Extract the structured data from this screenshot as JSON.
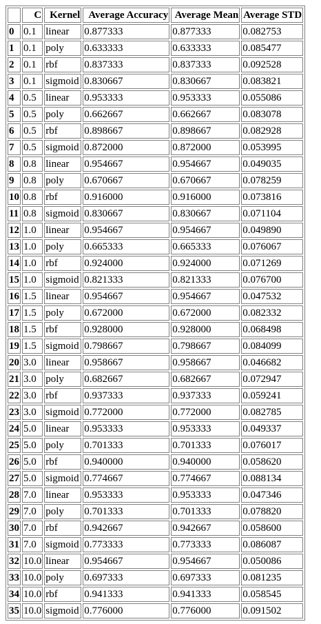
{
  "table": {
    "columns": [
      "",
      "C",
      "Kernel",
      "Average Accuracy",
      "Average Mean",
      "Average STD"
    ],
    "rows": [
      [
        "0",
        "0.1",
        "linear",
        "0.877333",
        "0.877333",
        "0.082753"
      ],
      [
        "1",
        "0.1",
        "poly",
        "0.633333",
        "0.633333",
        "0.085477"
      ],
      [
        "2",
        "0.1",
        "rbf",
        "0.837333",
        "0.837333",
        "0.092528"
      ],
      [
        "3",
        "0.1",
        "sigmoid",
        "0.830667",
        "0.830667",
        "0.083821"
      ],
      [
        "4",
        "0.5",
        "linear",
        "0.953333",
        "0.953333",
        "0.055086"
      ],
      [
        "5",
        "0.5",
        "poly",
        "0.662667",
        "0.662667",
        "0.083078"
      ],
      [
        "6",
        "0.5",
        "rbf",
        "0.898667",
        "0.898667",
        "0.082928"
      ],
      [
        "7",
        "0.5",
        "sigmoid",
        "0.872000",
        "0.872000",
        "0.053995"
      ],
      [
        "8",
        "0.8",
        "linear",
        "0.954667",
        "0.954667",
        "0.049035"
      ],
      [
        "9",
        "0.8",
        "poly",
        "0.670667",
        "0.670667",
        "0.078259"
      ],
      [
        "10",
        "0.8",
        "rbf",
        "0.916000",
        "0.916000",
        "0.073816"
      ],
      [
        "11",
        "0.8",
        "sigmoid",
        "0.830667",
        "0.830667",
        "0.071104"
      ],
      [
        "12",
        "1.0",
        "linear",
        "0.954667",
        "0.954667",
        "0.049890"
      ],
      [
        "13",
        "1.0",
        "poly",
        "0.665333",
        "0.665333",
        "0.076067"
      ],
      [
        "14",
        "1.0",
        "rbf",
        "0.924000",
        "0.924000",
        "0.071269"
      ],
      [
        "15",
        "1.0",
        "sigmoid",
        "0.821333",
        "0.821333",
        "0.076700"
      ],
      [
        "16",
        "1.5",
        "linear",
        "0.954667",
        "0.954667",
        "0.047532"
      ],
      [
        "17",
        "1.5",
        "poly",
        "0.672000",
        "0.672000",
        "0.082332"
      ],
      [
        "18",
        "1.5",
        "rbf",
        "0.928000",
        "0.928000",
        "0.068498"
      ],
      [
        "19",
        "1.5",
        "sigmoid",
        "0.798667",
        "0.798667",
        "0.084099"
      ],
      [
        "20",
        "3.0",
        "linear",
        "0.958667",
        "0.958667",
        "0.046682"
      ],
      [
        "21",
        "3.0",
        "poly",
        "0.682667",
        "0.682667",
        "0.072947"
      ],
      [
        "22",
        "3.0",
        "rbf",
        "0.937333",
        "0.937333",
        "0.059241"
      ],
      [
        "23",
        "3.0",
        "sigmoid",
        "0.772000",
        "0.772000",
        "0.082785"
      ],
      [
        "24",
        "5.0",
        "linear",
        "0.953333",
        "0.953333",
        "0.049337"
      ],
      [
        "25",
        "5.0",
        "poly",
        "0.701333",
        "0.701333",
        "0.076017"
      ],
      [
        "26",
        "5.0",
        "rbf",
        "0.940000",
        "0.940000",
        "0.058620"
      ],
      [
        "27",
        "5.0",
        "sigmoid",
        "0.774667",
        "0.774667",
        "0.088134"
      ],
      [
        "28",
        "7.0",
        "linear",
        "0.953333",
        "0.953333",
        "0.047346"
      ],
      [
        "29",
        "7.0",
        "poly",
        "0.701333",
        "0.701333",
        "0.078820"
      ],
      [
        "30",
        "7.0",
        "rbf",
        "0.942667",
        "0.942667",
        "0.058600"
      ],
      [
        "31",
        "7.0",
        "sigmoid",
        "0.773333",
        "0.773333",
        "0.086087"
      ],
      [
        "32",
        "10.0",
        "linear",
        "0.954667",
        "0.954667",
        "0.050086"
      ],
      [
        "33",
        "10.0",
        "poly",
        "0.697333",
        "0.697333",
        "0.081235"
      ],
      [
        "34",
        "10.0",
        "rbf",
        "0.941333",
        "0.941333",
        "0.058545"
      ],
      [
        "35",
        "10.0",
        "sigmoid",
        "0.776000",
        "0.776000",
        "0.091502"
      ]
    ]
  }
}
